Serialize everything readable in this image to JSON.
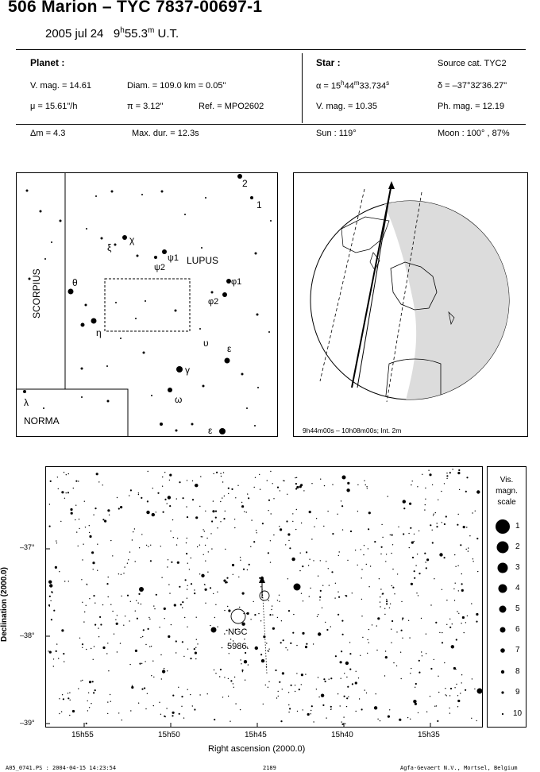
{
  "header": {
    "title": "506 Marion  –  TYC 7837-00697-1",
    "date": "2005 jul 24",
    "time_h": "9",
    "time_h_sup": "h",
    "time_m": "55.3",
    "time_m_sup": "m",
    "time_suffix": "U.T."
  },
  "planet": {
    "heading": "Planet :",
    "vmag": "V. mag. = 14.61",
    "diam": "Diam. = 109.0 km = 0.05\"",
    "mu": "μ =  15.61\"/h",
    "pi": "π =  3.12\"",
    "ref": "Ref. = MPO2602"
  },
  "star": {
    "heading": "Star :",
    "source": "Source cat.  TYC2",
    "alpha_prefix": "α = 15",
    "alpha_h": "h",
    "alpha_mid": "44",
    "alpha_m": "m",
    "alpha_sec": "33.734",
    "alpha_s": "s",
    "delta": "δ = –37°32'36.27\"",
    "vmag": "V. mag. = 10.35",
    "phmag": "Ph. mag. = 12.19"
  },
  "event": {
    "dm": "Δm = 4.3",
    "maxdur": "Max. dur. = 12.3s",
    "sun": "Sun : 119°",
    "moon": "Moon : 100° , 87%"
  },
  "finder_chart": {
    "constellations": [
      "SCORPIUS",
      "LUPUS",
      "NORMA"
    ],
    "star_labels": [
      "2",
      "1",
      "χ",
      "ξ",
      "ψ1",
      "ψ2",
      "θ",
      "φ1",
      "φ2",
      "η",
      "υ",
      "ε",
      "γ",
      "ω",
      "ε",
      "λ"
    ]
  },
  "globe": {
    "caption": "9h44m00s – 10h08m00s; Int.  2m"
  },
  "detail_chart": {
    "dec_ticks": [
      "–37°",
      "–38°",
      "–39°"
    ],
    "ra_ticks": [
      "15h55",
      "15h50",
      "15h45",
      "15h40",
      "15h35"
    ],
    "xlabel": "Right ascension (2000.0)",
    "ylabel": "Declination (2000.0)",
    "object_label_1": "NGC",
    "object_label_2": "5986"
  },
  "legend": {
    "title_1": "Vis.",
    "title_2": "magn.",
    "title_3": "scale",
    "magnitudes": [
      "1",
      "2",
      "3",
      "4",
      "5",
      "6",
      "7",
      "8",
      "9",
      "10"
    ]
  },
  "footer": {
    "left": "A05_0741.PS : 2004-04-15 14:23:54",
    "center": "2189",
    "right": "Agfa-Gevaert N.V., Mortsel, Belgium"
  }
}
